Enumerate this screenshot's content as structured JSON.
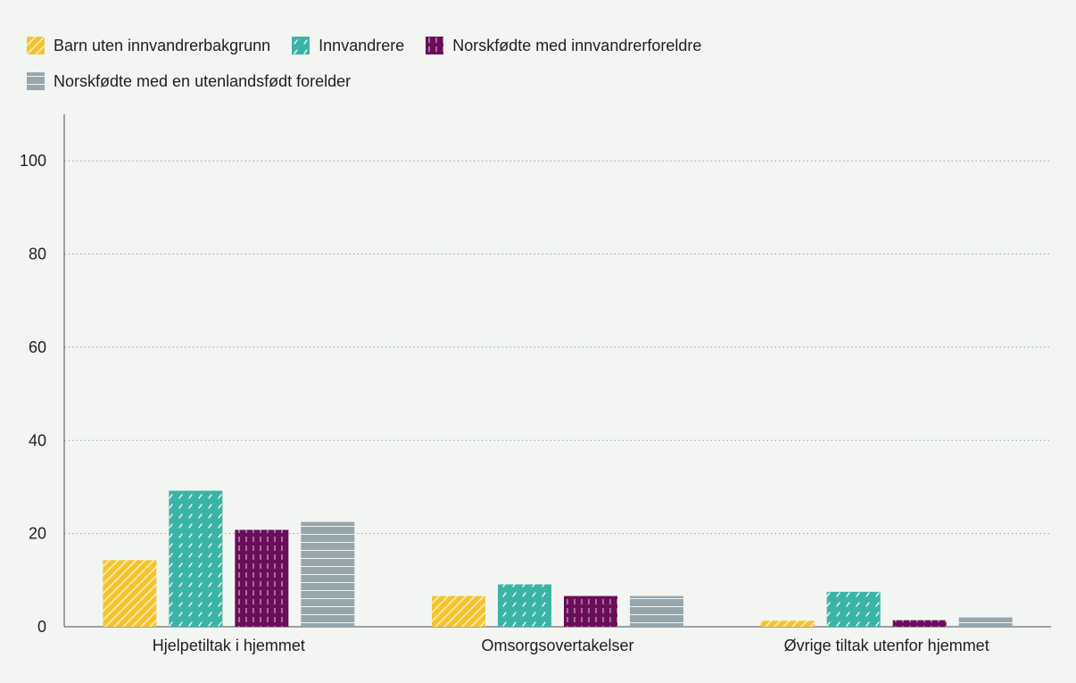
{
  "chart_data": {
    "type": "bar",
    "categories": [
      "Hjelpetiltak i hjemmet",
      "Omsorgsovertakelser",
      "Øvrige tiltak utenfor hjemmet"
    ],
    "series": [
      {
        "name": "Barn uten innvandrerbakgrunn",
        "values": [
          14.3,
          6.6,
          1.3
        ],
        "color": "#f4c430",
        "pattern": "diagonal"
      },
      {
        "name": "Innvandrere",
        "values": [
          29.2,
          9.1,
          7.5
        ],
        "color": "#3bb4a6",
        "pattern": "dashes"
      },
      {
        "name": "Norskfødte med innvandrerforeldre",
        "values": [
          20.8,
          6.6,
          1.4
        ],
        "color": "#6b0d5b",
        "pattern": "vertical"
      },
      {
        "name": "Norskfødte med en utenlandsfødt forelder",
        "values": [
          22.5,
          6.6,
          2.0
        ],
        "color": "#96a6ad",
        "pattern": "horizontal"
      }
    ],
    "yticks": [
      0,
      20,
      40,
      60,
      80,
      100
    ],
    "ylim": [
      0,
      110
    ],
    "grid": "dotted horizontal",
    "legend_position": "top-left",
    "title": "",
    "xlabel": "",
    "ylabel": ""
  }
}
